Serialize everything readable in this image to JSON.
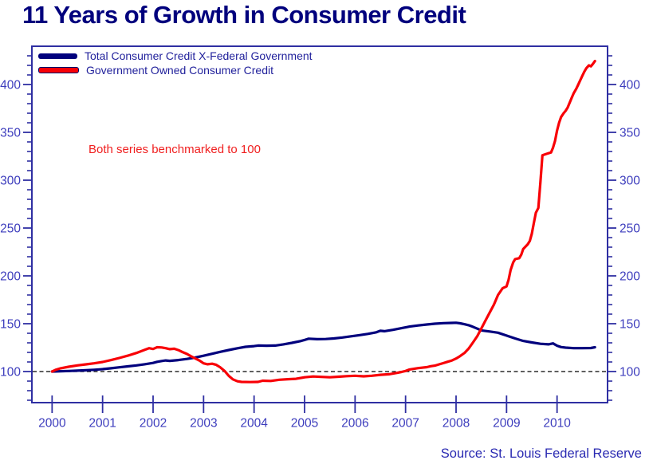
{
  "title": "11 Years of Growth in Consumer Credit",
  "source": "Source: St. Louis Federal Reserve",
  "colors": {
    "title": "#00007d",
    "axis": "#2f2fa2",
    "tick_label": "#3d3dbd",
    "legend_text": "#22229c",
    "annotation": "#f02020",
    "source_text": "#2a2ab2",
    "benchmark_line": "#000000",
    "background": "#ffffff"
  },
  "chart_data": {
    "type": "line",
    "title": "11 Years of Growth in Consumer Credit",
    "annotation": "Both series benchmarked to 100",
    "xlabel": "",
    "ylabel": "",
    "grid": false,
    "legend_position": "top-left-inside",
    "x_ticks": [
      2000,
      2001,
      2002,
      2003,
      2004,
      2005,
      2006,
      2007,
      2008,
      2009,
      2010
    ],
    "y_ticks": [
      100,
      150,
      200,
      250,
      300,
      350,
      400
    ],
    "y_minor_step": 10,
    "xlim": [
      1999.6,
      2011.0
    ],
    "ylim": [
      67.5,
      440
    ],
    "benchmark_value": 100,
    "series": [
      {
        "name": "Total Consumer Credit X-Federal Government",
        "color": "#00007d",
        "points": [
          [
            2000.0,
            100
          ],
          [
            2000.17,
            100.3
          ],
          [
            2000.33,
            100.6
          ],
          [
            2000.5,
            100.9
          ],
          [
            2000.67,
            101.3
          ],
          [
            2000.83,
            101.8
          ],
          [
            2001.0,
            102.5
          ],
          [
            2001.17,
            103.4
          ],
          [
            2001.33,
            104.4
          ],
          [
            2001.5,
            105.4
          ],
          [
            2001.67,
            106.4
          ],
          [
            2001.83,
            107.6
          ],
          [
            2002.0,
            109
          ],
          [
            2002.08,
            110.2
          ],
          [
            2002.17,
            111
          ],
          [
            2002.25,
            111.6
          ],
          [
            2002.33,
            111.2
          ],
          [
            2002.5,
            112
          ],
          [
            2002.67,
            113.2
          ],
          [
            2002.83,
            114.6
          ],
          [
            2003.0,
            116.5
          ],
          [
            2003.17,
            118.6
          ],
          [
            2003.33,
            120.6
          ],
          [
            2003.5,
            122.5
          ],
          [
            2003.67,
            124.3
          ],
          [
            2003.83,
            125.8
          ],
          [
            2004.0,
            126.6
          ],
          [
            2004.08,
            127.2
          ],
          [
            2004.25,
            127
          ],
          [
            2004.42,
            127.2
          ],
          [
            2004.58,
            128.4
          ],
          [
            2004.75,
            130
          ],
          [
            2004.92,
            131.8
          ],
          [
            2005.0,
            133
          ],
          [
            2005.08,
            134.3
          ],
          [
            2005.25,
            133.8
          ],
          [
            2005.42,
            134
          ],
          [
            2005.58,
            134.6
          ],
          [
            2005.75,
            135.6
          ],
          [
            2005.92,
            136.8
          ],
          [
            2006.08,
            138
          ],
          [
            2006.25,
            139.3
          ],
          [
            2006.42,
            141
          ],
          [
            2006.5,
            142.6
          ],
          [
            2006.58,
            142.2
          ],
          [
            2006.75,
            143.6
          ],
          [
            2006.92,
            145.3
          ],
          [
            2007.08,
            147
          ],
          [
            2007.25,
            148.2
          ],
          [
            2007.42,
            149.2
          ],
          [
            2007.58,
            150
          ],
          [
            2007.75,
            150.6
          ],
          [
            2007.92,
            150.8
          ],
          [
            2008.0,
            151
          ],
          [
            2008.08,
            150.4
          ],
          [
            2008.17,
            149.4
          ],
          [
            2008.25,
            148.4
          ],
          [
            2008.33,
            146.8
          ],
          [
            2008.42,
            144.8
          ],
          [
            2008.5,
            143
          ],
          [
            2008.67,
            141.8
          ],
          [
            2008.83,
            140.6
          ],
          [
            2009.0,
            137.6
          ],
          [
            2009.17,
            134.6
          ],
          [
            2009.33,
            132
          ],
          [
            2009.5,
            130.4
          ],
          [
            2009.67,
            129
          ],
          [
            2009.83,
            128.4
          ],
          [
            2009.92,
            129.4
          ],
          [
            2010.0,
            127
          ],
          [
            2010.08,
            125.6
          ],
          [
            2010.17,
            125
          ],
          [
            2010.33,
            124.4
          ],
          [
            2010.5,
            124.4
          ],
          [
            2010.67,
            124.6
          ],
          [
            2010.75,
            125.4
          ]
        ]
      },
      {
        "name": "Government Owned Consumer Credit",
        "color": "#f80006",
        "points": [
          [
            2000.0,
            100
          ],
          [
            2000.08,
            102
          ],
          [
            2000.17,
            103.4
          ],
          [
            2000.33,
            105
          ],
          [
            2000.5,
            106.4
          ],
          [
            2000.67,
            107.5
          ],
          [
            2000.83,
            108.6
          ],
          [
            2001.0,
            110
          ],
          [
            2001.17,
            112
          ],
          [
            2001.33,
            114.2
          ],
          [
            2001.5,
            116.6
          ],
          [
            2001.67,
            119.4
          ],
          [
            2001.83,
            122.6
          ],
          [
            2001.92,
            124.4
          ],
          [
            2002.0,
            123.6
          ],
          [
            2002.08,
            125.4
          ],
          [
            2002.17,
            125.2
          ],
          [
            2002.25,
            124.4
          ],
          [
            2002.33,
            123.4
          ],
          [
            2002.42,
            123.8
          ],
          [
            2002.5,
            122.4
          ],
          [
            2002.58,
            120.4
          ],
          [
            2002.67,
            118.4
          ],
          [
            2002.75,
            116
          ],
          [
            2002.83,
            113.8
          ],
          [
            2002.92,
            111.4
          ],
          [
            2003.0,
            108.6
          ],
          [
            2003.08,
            107.6
          ],
          [
            2003.17,
            108.2
          ],
          [
            2003.25,
            107
          ],
          [
            2003.33,
            104.4
          ],
          [
            2003.42,
            100.4
          ],
          [
            2003.5,
            95.4
          ],
          [
            2003.58,
            91.8
          ],
          [
            2003.67,
            89.8
          ],
          [
            2003.75,
            89.2
          ],
          [
            2003.92,
            89
          ],
          [
            2004.08,
            89.2
          ],
          [
            2004.17,
            90.4
          ],
          [
            2004.33,
            90.2
          ],
          [
            2004.5,
            91.4
          ],
          [
            2004.67,
            92
          ],
          [
            2004.83,
            92.4
          ],
          [
            2005.0,
            94
          ],
          [
            2005.17,
            94.8
          ],
          [
            2005.33,
            94.4
          ],
          [
            2005.5,
            94
          ],
          [
            2005.67,
            94.6
          ],
          [
            2005.83,
            95.2
          ],
          [
            2006.0,
            95.6
          ],
          [
            2006.17,
            95
          ],
          [
            2006.33,
            95.6
          ],
          [
            2006.5,
            96.6
          ],
          [
            2006.67,
            97.2
          ],
          [
            2006.83,
            98.6
          ],
          [
            2006.92,
            99.6
          ],
          [
            2007.0,
            100.6
          ],
          [
            2007.08,
            102.2
          ],
          [
            2007.25,
            103.6
          ],
          [
            2007.42,
            104.6
          ],
          [
            2007.5,
            105.6
          ],
          [
            2007.58,
            106.2
          ],
          [
            2007.67,
            107.6
          ],
          [
            2007.75,
            108.8
          ],
          [
            2007.83,
            110.2
          ],
          [
            2007.92,
            111.6
          ],
          [
            2008.0,
            113.6
          ],
          [
            2008.08,
            116.2
          ],
          [
            2008.17,
            119.6
          ],
          [
            2008.25,
            124
          ],
          [
            2008.33,
            130
          ],
          [
            2008.42,
            137
          ],
          [
            2008.5,
            145
          ],
          [
            2008.58,
            153
          ],
          [
            2008.67,
            162
          ],
          [
            2008.75,
            170
          ],
          [
            2008.83,
            180
          ],
          [
            2008.92,
            187
          ],
          [
            2009.0,
            189
          ],
          [
            2009.04,
            196
          ],
          [
            2009.08,
            206
          ],
          [
            2009.13,
            214
          ],
          [
            2009.17,
            217.5
          ],
          [
            2009.25,
            218.5
          ],
          [
            2009.29,
            222
          ],
          [
            2009.33,
            228
          ],
          [
            2009.42,
            233
          ],
          [
            2009.46,
            236.5
          ],
          [
            2009.5,
            244
          ],
          [
            2009.54,
            255
          ],
          [
            2009.58,
            266
          ],
          [
            2009.63,
            271
          ],
          [
            2009.67,
            298
          ],
          [
            2009.71,
            326
          ],
          [
            2009.79,
            327.5
          ],
          [
            2009.88,
            329
          ],
          [
            2009.92,
            334
          ],
          [
            2009.96,
            341
          ],
          [
            2010.0,
            352
          ],
          [
            2010.04,
            360
          ],
          [
            2010.08,
            366
          ],
          [
            2010.13,
            370
          ],
          [
            2010.17,
            372.5
          ],
          [
            2010.21,
            376
          ],
          [
            2010.25,
            381
          ],
          [
            2010.29,
            386
          ],
          [
            2010.33,
            391
          ],
          [
            2010.38,
            395.5
          ],
          [
            2010.42,
            400
          ],
          [
            2010.46,
            404.5
          ],
          [
            2010.5,
            409
          ],
          [
            2010.54,
            413.5
          ],
          [
            2010.58,
            417
          ],
          [
            2010.63,
            420
          ],
          [
            2010.67,
            419
          ],
          [
            2010.71,
            421.5
          ],
          [
            2010.75,
            424.5
          ]
        ]
      }
    ]
  }
}
